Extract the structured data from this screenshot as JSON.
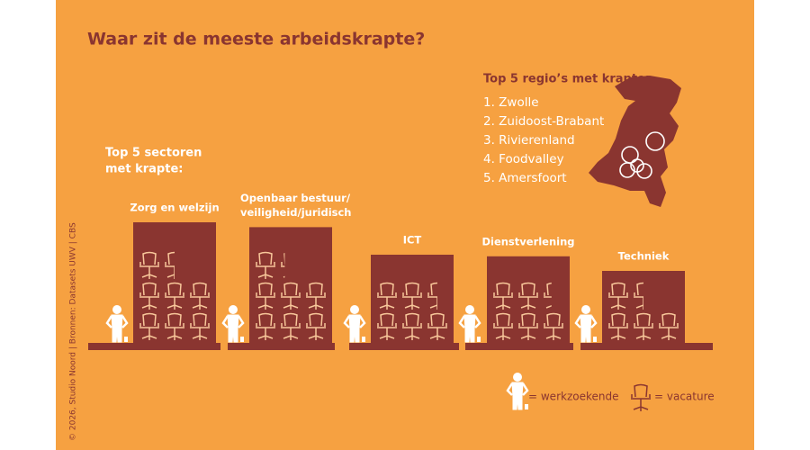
{
  "title": "Waar zit de meeste arbeidskrapte?",
  "regions": {
    "heading": "Top 5 regio’s met krapte:",
    "items": [
      "1. Zwolle",
      "2. Zuidoost-Brabant",
      "3. Rivierenland",
      "4. Foodvalley",
      "5. Amersfoort"
    ]
  },
  "sectors": {
    "heading": [
      "Top 5 sectoren",
      "met krapte:"
    ],
    "items": [
      {
        "label": [
          "Zorg en welzijn"
        ],
        "vacatures": 7.5
      },
      {
        "label": [
          "Openbaar bestuur/",
          "veiligheid/juridisch"
        ],
        "vacatures": 7.2
      },
      {
        "label": [
          "ICT"
        ],
        "vacatures": 5.5
      },
      {
        "label": [
          "Dienstverlening"
        ],
        "vacatures": 5.4
      },
      {
        "label": [
          "Techniek"
        ],
        "vacatures": 4.5
      }
    ]
  },
  "legend": {
    "werkzoekende": "= werkzoekende",
    "vacature": "= vacature"
  },
  "credit": "© 2026, Studio Noord | Bronnen: Datasets UWV | CBS"
}
